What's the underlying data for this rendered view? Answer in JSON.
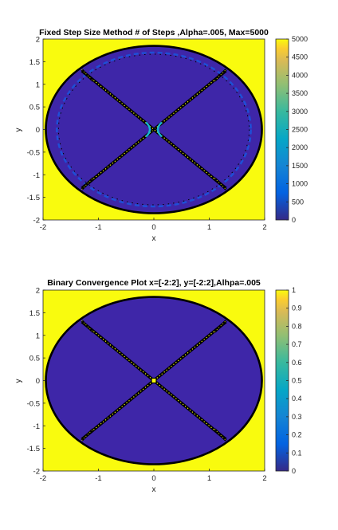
{
  "colors": {
    "background": "#ffffff",
    "outside_region": "#f9fb0e",
    "inside_region": "#3e26a8",
    "boundary": "#000000",
    "colormap": "parula"
  },
  "chart_data": [
    {
      "type": "heatmap",
      "title": "Fixed Step Size Method # of Steps ,Alpha=.005, Max=5000",
      "xlabel": "x",
      "ylabel": "y",
      "xlim": [
        -2,
        2
      ],
      "ylim": [
        -2,
        2
      ],
      "xticks": [
        -2,
        -1,
        0,
        1,
        2
      ],
      "yticks": [
        -2,
        -1.5,
        -1,
        -0.5,
        0,
        0.5,
        1,
        1.5,
        2
      ],
      "grid": false,
      "colorbar": {
        "range": [
          0,
          5000
        ],
        "ticks": [
          0,
          500,
          1000,
          1500,
          2000,
          2500,
          3000,
          3500,
          4000,
          4500,
          5000
        ]
      },
      "regions": {
        "outside_value": 5000,
        "inside_value": 0,
        "boundary_radius_x": 1.95,
        "boundary_radius_y": 1.85,
        "diagonal_lines": [
          "y = x",
          "y = -x"
        ],
        "diagonal_extent": 1.3,
        "inner_ring_radius_x": 1.75,
        "inner_ring_radius_y": 1.7
      }
    },
    {
      "type": "heatmap",
      "title": "Binary Convergence Plot x=[-2:2], y=[-2:2],Alhpa=.005",
      "xlabel": "x",
      "ylabel": "y",
      "xlim": [
        -2,
        2
      ],
      "ylim": [
        -2,
        2
      ],
      "xticks": [
        -2,
        -1,
        0,
        1,
        2
      ],
      "yticks": [
        -2,
        -1.5,
        -1,
        -0.5,
        0,
        0.5,
        1,
        1.5,
        2
      ],
      "grid": false,
      "colorbar": {
        "range": [
          0,
          1
        ],
        "ticks": [
          0,
          0.1,
          0.2,
          0.3,
          0.4,
          0.5,
          0.6,
          0.7,
          0.8,
          0.9,
          1
        ]
      },
      "regions": {
        "outside_value": 1,
        "inside_value": 0,
        "boundary_radius_x": 1.95,
        "boundary_radius_y": 1.85,
        "diagonal_lines": [
          "y = x",
          "y = -x"
        ],
        "diagonal_extent": 1.3
      }
    }
  ]
}
